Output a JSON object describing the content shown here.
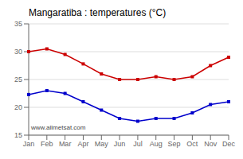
{
  "chart_data": {
    "type": "line",
    "title": "Mangaratiba : temperatures (°C)",
    "categories": [
      "Jan",
      "Feb",
      "Mar",
      "Apr",
      "May",
      "Jun",
      "Jul",
      "Aug",
      "Sep",
      "Oct",
      "Nov",
      "Dec"
    ],
    "series": [
      {
        "color": "#cc0000",
        "marker": "square",
        "values": [
          30.0,
          30.5,
          29.5,
          27.8,
          26.0,
          25.0,
          25.0,
          25.5,
          25.0,
          25.5,
          27.5,
          29.0
        ]
      },
      {
        "color": "#0000cc",
        "marker": "square",
        "values": [
          22.3,
          23.0,
          22.5,
          21.0,
          19.5,
          18.0,
          17.5,
          18.0,
          18.0,
          19.0,
          20.5,
          21.0
        ]
      }
    ],
    "ylim": [
      15,
      35
    ],
    "yticks": [
      15,
      20,
      25,
      30,
      35
    ],
    "grid": true,
    "annotations": [
      "www.allmetsat.com"
    ]
  }
}
